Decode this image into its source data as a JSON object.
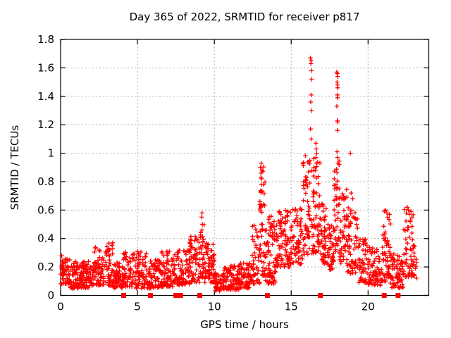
{
  "chart_data": {
    "type": "scatter",
    "title": "Day 365 of 2022, SRMTID for receiver p817",
    "xlabel": "GPS time / hours",
    "ylabel": "SRMTID / TECUs",
    "xlim": [
      0,
      23.95
    ],
    "ylim": [
      0,
      1.8
    ],
    "xticks": [
      0,
      5,
      10,
      15,
      20
    ],
    "yticks": [
      0,
      0.2,
      0.4,
      0.6,
      0.8,
      1,
      1.2,
      1.4,
      1.6,
      1.8
    ],
    "grid": true,
    "legend": "none",
    "colors": {
      "points": "#ff0000",
      "grid": "#b0b0b0",
      "axis": "#000000",
      "background": "#ffffff"
    },
    "seed": 42,
    "series": [
      {
        "name": "SRMTID",
        "marker": "plus",
        "color": "#ff0000"
      }
    ],
    "band_segments": [
      [
        0.0,
        0.6,
        0.08,
        0.28,
        55,
        1.4
      ],
      [
        0.6,
        2.2,
        0.05,
        0.24,
        150,
        1.5
      ],
      [
        2.2,
        2.7,
        0.07,
        0.34,
        50,
        1.5
      ],
      [
        2.7,
        3.4,
        0.07,
        0.38,
        60,
        1.6
      ],
      [
        3.4,
        4.1,
        0.05,
        0.23,
        65,
        1.4
      ],
      [
        4.1,
        4.75,
        0.06,
        0.31,
        55,
        1.5
      ],
      [
        4.75,
        5.6,
        0.05,
        0.31,
        70,
        1.6
      ],
      [
        5.6,
        6.5,
        0.05,
        0.25,
        70,
        1.4
      ],
      [
        6.5,
        7.5,
        0.06,
        0.31,
        85,
        1.5
      ],
      [
        7.5,
        8.4,
        0.07,
        0.33,
        75,
        1.4
      ],
      [
        8.4,
        9.05,
        0.09,
        0.42,
        55,
        1.4
      ],
      [
        9.05,
        9.35,
        0.12,
        0.5,
        28,
        1.2
      ],
      [
        9.35,
        10.0,
        0.09,
        0.38,
        60,
        1.3
      ],
      [
        10.0,
        10.6,
        0.03,
        0.16,
        50,
        1.2
      ],
      [
        10.6,
        11.6,
        0.04,
        0.21,
        95,
        1.4
      ],
      [
        11.6,
        12.45,
        0.05,
        0.23,
        80,
        1.4
      ],
      [
        12.45,
        12.95,
        0.08,
        0.5,
        42,
        1.5
      ],
      [
        12.95,
        13.3,
        0.12,
        0.92,
        45,
        1.3
      ],
      [
        13.3,
        14.0,
        0.08,
        0.56,
        75,
        1.3
      ],
      [
        14.0,
        15.0,
        0.2,
        0.6,
        95,
        1.4
      ],
      [
        15.0,
        15.75,
        0.22,
        0.63,
        60,
        1.4
      ],
      [
        15.75,
        16.45,
        0.28,
        1.02,
        75,
        1.5
      ],
      [
        16.45,
        16.9,
        0.3,
        1.0,
        45,
        1.6
      ],
      [
        16.9,
        17.4,
        0.22,
        0.66,
        50,
        1.5
      ],
      [
        17.4,
        17.78,
        0.18,
        0.5,
        40,
        1.4
      ],
      [
        17.78,
        18.15,
        0.3,
        0.95,
        40,
        1.3
      ],
      [
        18.15,
        18.65,
        0.22,
        0.78,
        45,
        1.5
      ],
      [
        18.65,
        19.35,
        0.15,
        0.62,
        60,
        1.6
      ],
      [
        19.35,
        20.0,
        0.08,
        0.4,
        50,
        1.5
      ],
      [
        20.0,
        20.95,
        0.07,
        0.34,
        75,
        1.5
      ],
      [
        20.95,
        21.45,
        0.1,
        0.6,
        50,
        1.5
      ],
      [
        21.45,
        22.3,
        0.05,
        0.3,
        70,
        1.4
      ],
      [
        22.3,
        22.95,
        0.13,
        0.62,
        55,
        1.4
      ],
      [
        22.95,
        23.15,
        0.12,
        0.35,
        12,
        1.3
      ]
    ],
    "feature_points": [
      [
        16.25,
        1.67
      ],
      [
        16.3,
        1.65
      ],
      [
        16.28,
        1.63
      ],
      [
        16.31,
        1.58
      ],
      [
        16.33,
        1.52
      ],
      [
        16.3,
        1.41
      ],
      [
        16.27,
        1.36
      ],
      [
        16.31,
        1.3
      ],
      [
        16.26,
        1.17
      ],
      [
        16.3,
        1.1
      ],
      [
        17.96,
        1.57
      ],
      [
        18.0,
        1.56
      ],
      [
        18.02,
        1.54
      ],
      [
        17.98,
        1.5
      ],
      [
        18.01,
        1.48
      ],
      [
        18.03,
        1.46
      ],
      [
        18.0,
        1.41
      ],
      [
        18.02,
        1.39
      ],
      [
        17.97,
        1.33
      ],
      [
        18.0,
        1.23
      ],
      [
        18.02,
        1.22
      ],
      [
        18.0,
        1.16
      ],
      [
        17.98,
        1.01
      ],
      [
        18.01,
        0.97
      ],
      [
        18.04,
        0.93
      ],
      [
        16.6,
        1.07
      ],
      [
        16.63,
        1.03
      ],
      [
        16.66,
        1.0
      ],
      [
        16.61,
        0.97
      ],
      [
        16.64,
        0.93
      ],
      [
        16.58,
        0.88
      ],
      [
        9.2,
        0.58
      ],
      [
        9.18,
        0.55
      ],
      [
        9.22,
        0.5
      ],
      [
        9.2,
        0.46
      ],
      [
        13.05,
        0.93
      ],
      [
        13.0,
        0.9
      ],
      [
        13.1,
        0.88
      ],
      [
        13.03,
        0.86
      ],
      [
        13.08,
        0.82
      ],
      [
        18.85,
        1.0
      ],
      [
        18.9,
        0.72
      ],
      [
        19.0,
        0.68
      ],
      [
        21.15,
        0.6
      ],
      [
        21.22,
        0.58
      ],
      [
        21.27,
        0.55
      ],
      [
        22.55,
        0.62
      ],
      [
        22.62,
        0.6
      ],
      [
        22.68,
        0.57
      ]
    ],
    "zero_markers": {
      "marker": "filled-square",
      "color": "#ff0000",
      "x": [
        4.1,
        5.85,
        7.5,
        7.8,
        9.05,
        13.45,
        16.9,
        21.05,
        21.95
      ]
    }
  }
}
